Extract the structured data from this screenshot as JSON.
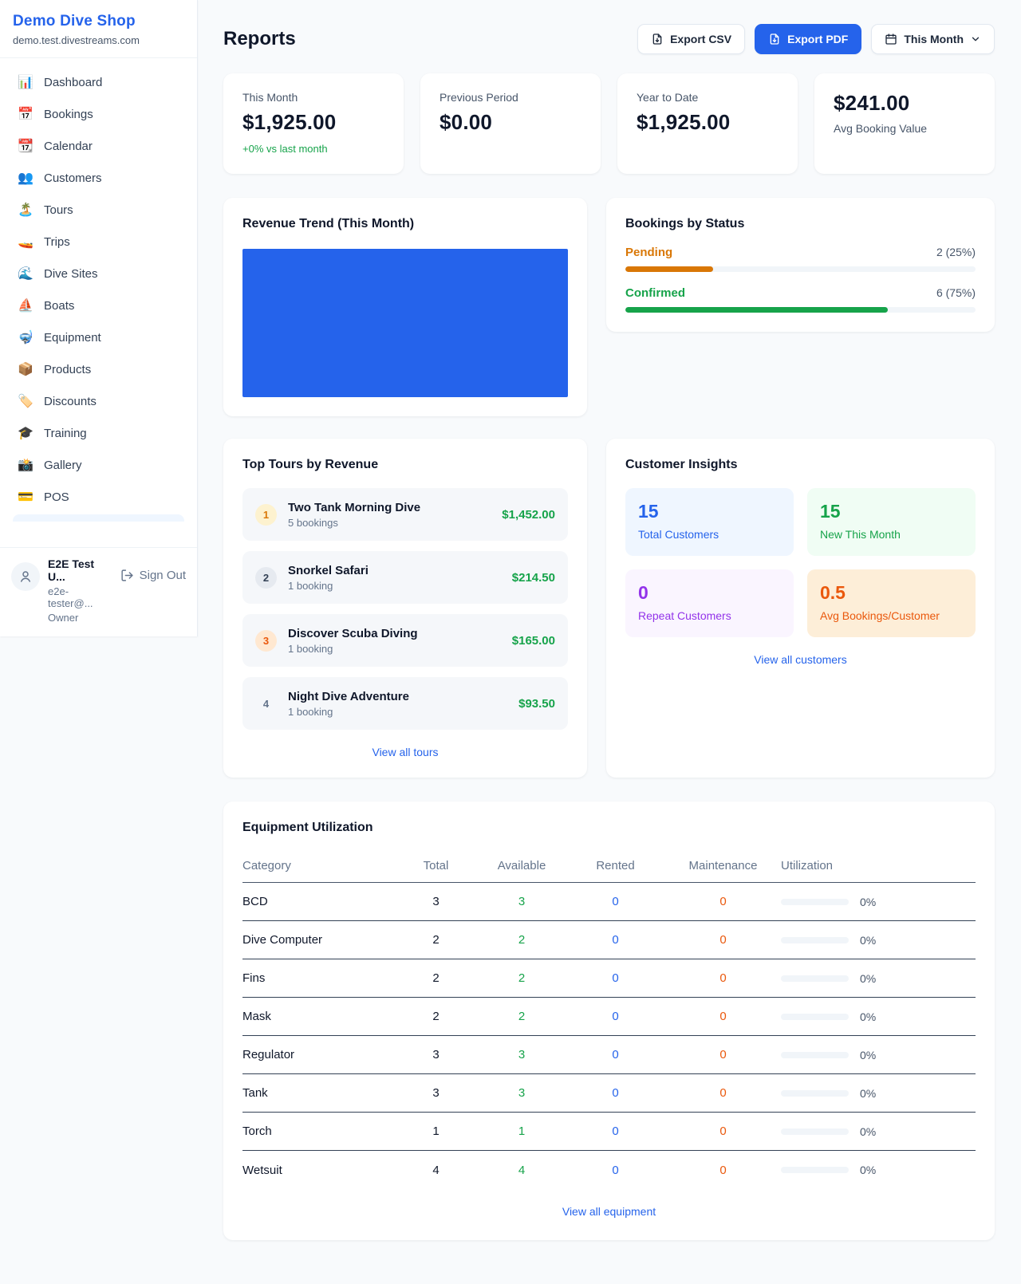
{
  "sidebar": {
    "shop_name": "Demo Dive Shop",
    "shop_domain": "demo.test.divestreams.com",
    "items": [
      {
        "icon": "📊",
        "label": "Dashboard"
      },
      {
        "icon": "📅",
        "label": "Bookings"
      },
      {
        "icon": "📆",
        "label": "Calendar"
      },
      {
        "icon": "👥",
        "label": "Customers"
      },
      {
        "icon": "🏝️",
        "label": "Tours"
      },
      {
        "icon": "🚤",
        "label": "Trips"
      },
      {
        "icon": "🌊",
        "label": "Dive Sites"
      },
      {
        "icon": "⛵",
        "label": "Boats"
      },
      {
        "icon": "🤿",
        "label": "Equipment"
      },
      {
        "icon": "📦",
        "label": "Products"
      },
      {
        "icon": "🏷️",
        "label": "Discounts"
      },
      {
        "icon": "🎓",
        "label": "Training"
      },
      {
        "icon": "📸",
        "label": "Gallery"
      },
      {
        "icon": "💳",
        "label": "POS"
      }
    ],
    "user": {
      "name": "E2E Test U...",
      "email": "e2e-tester@...",
      "role": "Owner",
      "sign_out_label": "Sign Out"
    }
  },
  "header": {
    "title": "Reports",
    "export_csv_label": "Export CSV",
    "export_pdf_label": "Export PDF",
    "period_label": "This Month"
  },
  "stats": [
    {
      "label": "This Month",
      "value": "$1,925.00",
      "delta": "+0% vs last month"
    },
    {
      "label": "Previous Period",
      "value": "$0.00"
    },
    {
      "label": "Year to Date",
      "value": "$1,925.00"
    },
    {
      "label": "Avg Booking Value",
      "value": "$241.00"
    }
  ],
  "revenue_trend": {
    "title": "Revenue Trend (This Month)",
    "fill_color": "#2563eb"
  },
  "bookings_by_status": {
    "title": "Bookings by Status",
    "rows": [
      {
        "label": "Pending",
        "value": "2 (25%)",
        "percent": 25,
        "color": "#d97706"
      },
      {
        "label": "Confirmed",
        "value": "6 (75%)",
        "percent": 75,
        "color": "#16a34a"
      }
    ]
  },
  "top_tours": {
    "title": "Top Tours by Revenue",
    "items": [
      {
        "rank": "1",
        "name": "Two Tank Morning Dive",
        "bookings": "5 bookings",
        "revenue": "$1,452.00"
      },
      {
        "rank": "2",
        "name": "Snorkel Safari",
        "bookings": "1 booking",
        "revenue": "$214.50"
      },
      {
        "rank": "3",
        "name": "Discover Scuba Diving",
        "bookings": "1 booking",
        "revenue": "$165.00"
      },
      {
        "rank": "4",
        "name": "Night Dive Adventure",
        "bookings": "1 booking",
        "revenue": "$93.50"
      }
    ],
    "view_all_label": "View all tours"
  },
  "customer_insights": {
    "title": "Customer Insights",
    "tiles": [
      {
        "value": "15",
        "label": "Total Customers",
        "theme": "blue"
      },
      {
        "value": "15",
        "label": "New This Month",
        "theme": "green"
      },
      {
        "value": "0",
        "label": "Repeat Customers",
        "theme": "purple"
      },
      {
        "value": "0.5",
        "label": "Avg Bookings/Customer",
        "theme": "orange"
      }
    ],
    "view_all_label": "View all customers"
  },
  "equipment_utilization": {
    "title": "Equipment Utilization",
    "columns": [
      "Category",
      "Total",
      "Available",
      "Rented",
      "Maintenance",
      "Utilization"
    ],
    "rows": [
      {
        "category": "BCD",
        "total": "3",
        "available": "3",
        "rented": "0",
        "maintenance": "0",
        "utilization": "0%",
        "utilization_percent": 0
      },
      {
        "category": "Dive Computer",
        "total": "2",
        "available": "2",
        "rented": "0",
        "maintenance": "0",
        "utilization": "0%",
        "utilization_percent": 0
      },
      {
        "category": "Fins",
        "total": "2",
        "available": "2",
        "rented": "0",
        "maintenance": "0",
        "utilization": "0%",
        "utilization_percent": 0
      },
      {
        "category": "Mask",
        "total": "2",
        "available": "2",
        "rented": "0",
        "maintenance": "0",
        "utilization": "0%",
        "utilization_percent": 0
      },
      {
        "category": "Regulator",
        "total": "3",
        "available": "3",
        "rented": "0",
        "maintenance": "0",
        "utilization": "0%",
        "utilization_percent": 0
      },
      {
        "category": "Tank",
        "total": "3",
        "available": "3",
        "rented": "0",
        "maintenance": "0",
        "utilization": "0%",
        "utilization_percent": 0
      },
      {
        "category": "Torch",
        "total": "1",
        "available": "1",
        "rented": "0",
        "maintenance": "0",
        "utilization": "0%",
        "utilization_percent": 0
      },
      {
        "category": "Wetsuit",
        "total": "4",
        "available": "4",
        "rented": "0",
        "maintenance": "0",
        "utilization": "0%",
        "utilization_percent": 0
      }
    ],
    "view_all_label": "View all equipment"
  },
  "colors": {
    "accent_blue": "#2563eb",
    "success_green": "#16a34a",
    "pending_orange": "#d97706",
    "maintenance_orange": "#ea580c"
  }
}
